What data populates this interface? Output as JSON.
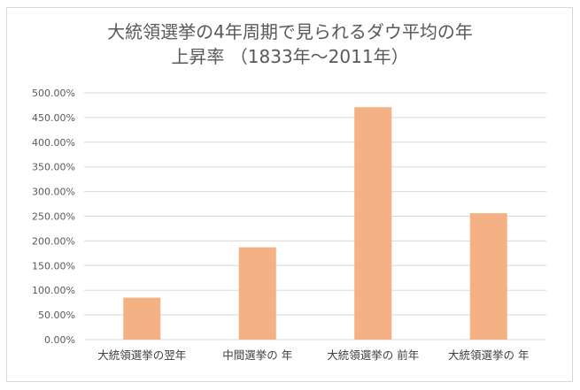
{
  "chart_data": {
    "type": "bar",
    "title_lines": [
      "大統領選挙の4年周期で見られるダウ平均の年",
      "上昇率 （1833年～2011年）"
    ],
    "categories": [
      "大統領選挙の翌年",
      "中間選挙の 年",
      "大統領選挙の 前年",
      "大統領選挙の 年"
    ],
    "values": [
      85,
      187,
      471,
      256
    ],
    "ylim": [
      0,
      500
    ],
    "yticks": [
      0,
      50,
      100,
      150,
      200,
      250,
      300,
      350,
      400,
      450,
      500
    ],
    "ytick_labels": [
      "0.00%",
      "50.00%",
      "100.00%",
      "150.00%",
      "200.00%",
      "250.00%",
      "300.00%",
      "350.00%",
      "400.00%",
      "450.00%",
      "500.00%"
    ],
    "grid": true,
    "bar_color": "#f4b183",
    "grid_color": "#d9d9d9"
  }
}
